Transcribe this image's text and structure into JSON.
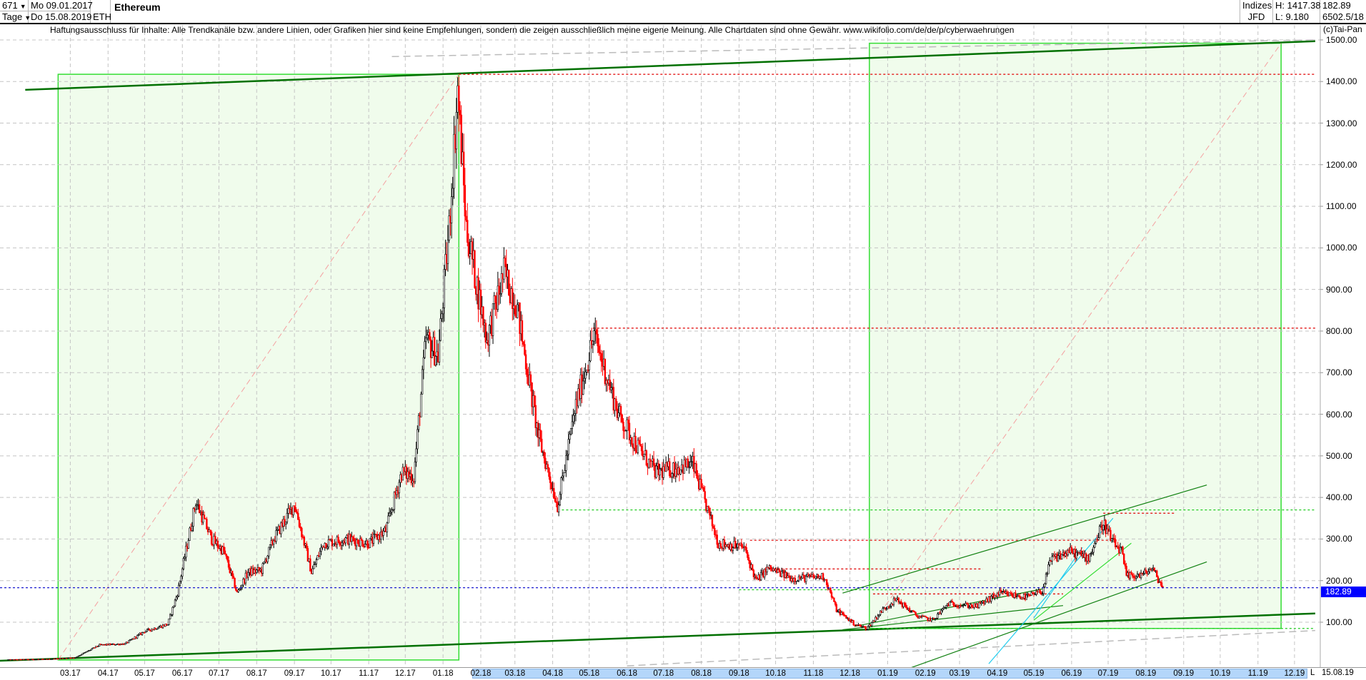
{
  "header": {
    "count": "671",
    "period": "Tage",
    "start_date": "Mo 09.01.2017",
    "end_date": "Do 15.08.2019",
    "symbol": "ETH",
    "title": "Ethereum",
    "exchange_group": "Indizes",
    "source": "JFD",
    "high": "H: 1417.38",
    "low": "L: 9.180",
    "last": "182.89",
    "extra": "6502.5/18"
  },
  "disclaimer": "Haftungsausschluss für Inhalte: Alle Trendkanäle bzw. andere Linien, oder Grafiken hier sind keine Empfehlungen, sondern die zeigen ausschließlich meine eigene Meinung. Alle Chartdaten sind ohne Gewähr.  www.wikifolio.com/de/de/p/cyberwaehrungen",
  "copyright": "(c)Tai-Pan",
  "axis": {
    "l_button": "L",
    "end_label": "15.08.19",
    "current_price_label": "182.89"
  },
  "chart_data": {
    "type": "candlestick",
    "title": "Ethereum",
    "ylim": [
      0,
      1540
    ],
    "xlim": [
      "2017-01-09",
      "2019-12-31"
    ],
    "grid": true,
    "y_ticks": [
      "1500.00",
      "1400.00",
      "1300.00",
      "1200.00",
      "1100.00",
      "1000.00",
      "900.00",
      "800.00",
      "700.00",
      "600.00",
      "500.00",
      "400.00",
      "300.00",
      "200.00",
      "100.00"
    ],
    "x_ticks": [
      {
        "label": "03.17",
        "date": "2017-03-01"
      },
      {
        "label": "04.17",
        "date": "2017-04-01"
      },
      {
        "label": "05.17",
        "date": "2017-05-01"
      },
      {
        "label": "06.17",
        "date": "2017-06-01"
      },
      {
        "label": "07.17",
        "date": "2017-07-01"
      },
      {
        "label": "08.17",
        "date": "2017-08-01"
      },
      {
        "label": "09.17",
        "date": "2017-09-01"
      },
      {
        "label": "10.17",
        "date": "2017-10-01"
      },
      {
        "label": "11.17",
        "date": "2017-11-01"
      },
      {
        "label": "12.17",
        "date": "2017-12-01"
      },
      {
        "label": "01.18",
        "date": "2018-01-01"
      },
      {
        "label": "02.18",
        "date": "2018-02-01"
      },
      {
        "label": "03.18",
        "date": "2018-03-01"
      },
      {
        "label": "04.18",
        "date": "2018-04-01"
      },
      {
        "label": "05.18",
        "date": "2018-05-01"
      },
      {
        "label": "06.18",
        "date": "2018-06-01"
      },
      {
        "label": "07.18",
        "date": "2018-07-01"
      },
      {
        "label": "08.18",
        "date": "2018-08-01"
      },
      {
        "label": "09.18",
        "date": "2018-09-01"
      },
      {
        "label": "10.18",
        "date": "2018-10-01"
      },
      {
        "label": "11.18",
        "date": "2018-11-01"
      },
      {
        "label": "12.18",
        "date": "2018-12-01"
      },
      {
        "label": "01.19",
        "date": "2019-01-01"
      },
      {
        "label": "02.19",
        "date": "2019-02-01"
      },
      {
        "label": "03.19",
        "date": "2019-03-01"
      },
      {
        "label": "04.19",
        "date": "2019-04-01"
      },
      {
        "label": "05.19",
        "date": "2019-05-01"
      },
      {
        "label": "06.19",
        "date": "2019-06-01"
      },
      {
        "label": "07.19",
        "date": "2019-07-01"
      },
      {
        "label": "08.19",
        "date": "2019-08-01"
      },
      {
        "label": "09.19",
        "date": "2019-09-01"
      },
      {
        "label": "10.19",
        "date": "2019-10-01"
      },
      {
        "label": "11.19",
        "date": "2019-11-01"
      },
      {
        "label": "12.19",
        "date": "2019-12-01"
      }
    ],
    "highlight_range": [
      "2018-02-01",
      "2019-12-31"
    ],
    "current_price": 182.89,
    "colors": {
      "up": "#000000",
      "down": "#ff0000",
      "box_fill": "#f0fcec",
      "box_edge": "#33dd33",
      "trend_dark": "#007000",
      "current_line": "#0000cc",
      "axis_highlight": "#b4d6fa"
    },
    "closes": [
      [
        "2017-01-09",
        10
      ],
      [
        "2017-02-10",
        11
      ],
      [
        "2017-03-05",
        15
      ],
      [
        "2017-03-25",
        45
      ],
      [
        "2017-04-15",
        48
      ],
      [
        "2017-05-01",
        78
      ],
      [
        "2017-05-20",
        95
      ],
      [
        "2017-05-28",
        170
      ],
      [
        "2017-06-12",
        390
      ],
      [
        "2017-06-25",
        300
      ],
      [
        "2017-07-05",
        270
      ],
      [
        "2017-07-16",
        170
      ],
      [
        "2017-07-25",
        220
      ],
      [
        "2017-08-05",
        225
      ],
      [
        "2017-08-15",
        300
      ],
      [
        "2017-09-01",
        385
      ],
      [
        "2017-09-15",
        220
      ],
      [
        "2017-09-25",
        290
      ],
      [
        "2017-10-15",
        300
      ],
      [
        "2017-11-01",
        290
      ],
      [
        "2017-11-15",
        320
      ],
      [
        "2017-11-28",
        460
      ],
      [
        "2017-12-08",
        450
      ],
      [
        "2017-12-18",
        780
      ],
      [
        "2017-12-28",
        740
      ],
      [
        "2018-01-06",
        1050
      ],
      [
        "2018-01-13",
        1380
      ],
      [
        "2018-01-20",
        1050
      ],
      [
        "2018-02-06",
        780
      ],
      [
        "2018-02-20",
        940
      ],
      [
        "2018-03-02",
        870
      ],
      [
        "2018-03-20",
        550
      ],
      [
        "2018-04-05",
        380
      ],
      [
        "2018-04-20",
        620
      ],
      [
        "2018-05-05",
        790
      ],
      [
        "2018-05-25",
        600
      ],
      [
        "2018-06-10",
        520
      ],
      [
        "2018-06-25",
        460
      ],
      [
        "2018-07-10",
        470
      ],
      [
        "2018-07-25",
        480
      ],
      [
        "2018-08-15",
        290
      ],
      [
        "2018-09-05",
        280
      ],
      [
        "2018-09-15",
        200
      ],
      [
        "2018-09-25",
        230
      ],
      [
        "2018-10-15",
        205
      ],
      [
        "2018-11-10",
        210
      ],
      [
        "2018-11-20",
        130
      ],
      [
        "2018-12-05",
        95
      ],
      [
        "2018-12-15",
        85
      ],
      [
        "2018-12-28",
        130
      ],
      [
        "2019-01-08",
        155
      ],
      [
        "2019-01-25",
        115
      ],
      [
        "2019-02-07",
        105
      ],
      [
        "2019-02-20",
        145
      ],
      [
        "2019-03-15",
        138
      ],
      [
        "2019-04-03",
        170
      ],
      [
        "2019-04-25",
        160
      ],
      [
        "2019-05-08",
        175
      ],
      [
        "2019-05-15",
        250
      ],
      [
        "2019-05-30",
        270
      ],
      [
        "2019-06-15",
        255
      ],
      [
        "2019-06-27",
        340
      ],
      [
        "2019-07-05",
        290
      ],
      [
        "2019-07-12",
        270
      ],
      [
        "2019-07-16",
        210
      ],
      [
        "2019-07-30",
        215
      ],
      [
        "2019-08-06",
        230
      ],
      [
        "2019-08-15",
        183
      ]
    ],
    "boxes": [
      {
        "from": [
          "2017-02-19",
          9.18
        ],
        "to": [
          "2018-01-14",
          1417.38
        ]
      },
      {
        "from": [
          "2018-12-17",
          85
        ],
        "to": [
          "2019-11-20",
          1492
        ]
      }
    ],
    "lines": [
      {
        "style": "trend_dark",
        "width": 2.5,
        "from": [
          "2017-01-23",
          1380
        ],
        "to": [
          "2019-12-18",
          1497
        ]
      },
      {
        "style": "trend_dark",
        "width": 2.5,
        "from": [
          "2016-12-20",
          6
        ],
        "to": [
          "2019-12-18",
          121
        ]
      },
      {
        "style": "gray_dash",
        "from": [
          "2017-11-20",
          1460
        ],
        "to": [
          "2019-12-18",
          1500
        ]
      },
      {
        "style": "gray_dash",
        "from": [
          "2018-06-01",
          -5
        ],
        "to": [
          "2019-12-18",
          80
        ]
      },
      {
        "style": "pink_dash",
        "from": [
          "2017-02-19",
          9.18
        ],
        "to": [
          "2018-01-14",
          1417.38
        ]
      },
      {
        "style": "pink_dash",
        "from": [
          "2018-12-17",
          85
        ],
        "to": [
          "2019-11-20",
          1492
        ]
      },
      {
        "style": "red_dot",
        "from": [
          "2018-01-14",
          1417.38
        ],
        "to": [
          "2019-12-18",
          1417.38
        ]
      },
      {
        "style": "red_dot",
        "from": [
          "2018-05-04",
          807
        ],
        "to": [
          "2019-12-18",
          807
        ]
      },
      {
        "style": "red_dot",
        "from": [
          "2018-09-10",
          297
        ],
        "to": [
          "2019-07-10",
          297
        ]
      },
      {
        "style": "red_dot",
        "from": [
          "2018-09-25",
          228
        ],
        "to": [
          "2019-03-20",
          228
        ]
      },
      {
        "style": "red_dot",
        "from": [
          "2018-12-20",
          168
        ],
        "to": [
          "2019-05-25",
          168
        ]
      },
      {
        "style": "red_dot",
        "from": [
          "2019-06-27",
          362
        ],
        "to": [
          "2019-08-25",
          362
        ]
      },
      {
        "style": "green_dot",
        "from": [
          "2018-04-05",
          370
        ],
        "to": [
          "2019-12-18",
          370
        ]
      },
      {
        "style": "green_dot",
        "from": [
          "2018-09-01",
          178
        ],
        "to": [
          "2019-01-15",
          178
        ]
      },
      {
        "style": "green_dot",
        "from": [
          "2018-12-17",
          85
        ],
        "to": [
          "2019-12-18",
          85
        ]
      },
      {
        "style": "trend_mid",
        "from": [
          "2018-11-25",
          170
        ],
        "to": [
          "2019-09-20",
          430
        ]
      },
      {
        "style": "trend_mid",
        "from": [
          "2018-11-25",
          82
        ],
        "to": [
          "2019-05-25",
          140
        ]
      },
      {
        "style": "trend_mid",
        "from": [
          "2019-01-10",
          -20
        ],
        "to": [
          "2019-09-20",
          245
        ]
      },
      {
        "style": "trend_mid",
        "from": [
          "2018-12-05",
          90
        ],
        "to": [
          "2019-05-08",
          180
        ]
      },
      {
        "style": "light_green",
        "from": [
          "2019-05-01",
          105
        ],
        "to": [
          "2019-07-20",
          290
        ]
      },
      {
        "style": "cyan",
        "from": [
          "2019-03-25",
          0
        ],
        "to": [
          "2019-07-05",
          350
        ]
      },
      {
        "style": "cyan",
        "from": [
          "2019-05-01",
          110
        ],
        "to": [
          "2019-06-10",
          280
        ]
      }
    ]
  }
}
